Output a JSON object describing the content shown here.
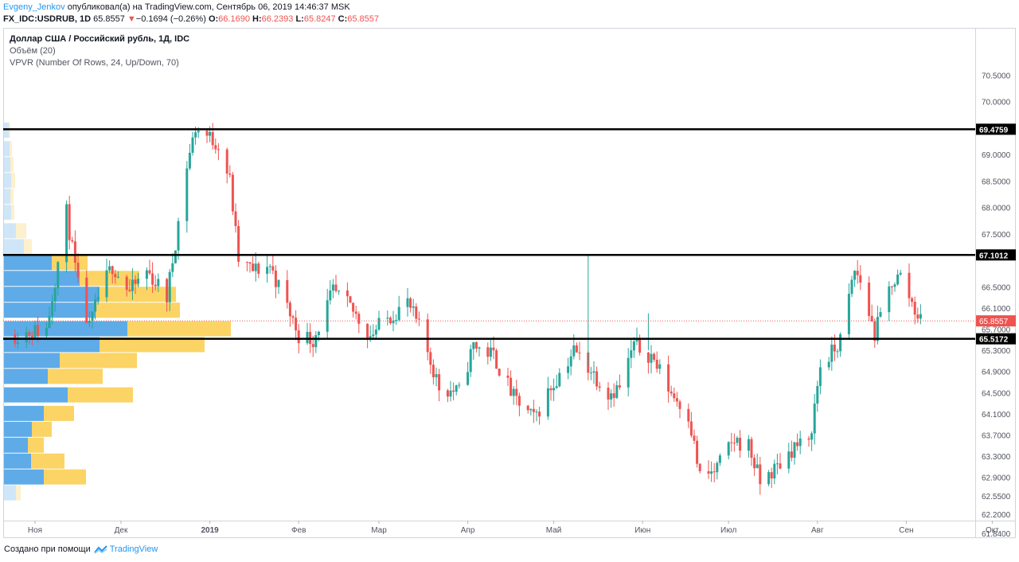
{
  "header": {
    "author": "Evgeny_Jenkov",
    "published": "опубликовал(а) на TradingView.com, Сентябрь 06, 2019 14:46:37 MSK",
    "symbol": "FX_IDC:USDRUB, 1D",
    "last": "65.8557",
    "change_arrow": "▼",
    "change": "−0.1694 (−0.26%)",
    "o_label": "O:",
    "o": "66.1690",
    "h_label": "H:",
    "h": "66.2393",
    "l_label": "L:",
    "l": "65.8247",
    "c_label": "C:",
    "c": "65.8557"
  },
  "legend": {
    "title": "Доллар США / Российский рубль, 1Д, IDC",
    "volume": "Объём (20)",
    "vpvr": "VPVR (Number Of Rows, 24, Up/Down, 70)"
  },
  "footer": {
    "created": "Создано при помощи",
    "brand": "TradingView",
    "brand_icon": "tradingview-logo-icon"
  },
  "colors": {
    "up": "#26a69a",
    "down": "#ef5350",
    "vp_up": "#5eabe8",
    "vp_down": "#fcd465",
    "vp_up_faint": "#cfe6f8",
    "vp_down_faint": "#fdf0cc",
    "level_line": "#000000",
    "price_line": "#ef5350"
  },
  "chart_data": {
    "type": "candlestick",
    "y_axis_ticks": [
      "70.5000",
      "70.0000",
      "69.0000",
      "68.5000",
      "68.0000",
      "67.5000",
      "66.5000",
      "66.1000",
      "65.7000",
      "65.3000",
      "64.9000",
      "64.5000",
      "64.1000",
      "63.7000",
      "63.3000",
      "62.9000",
      "62.5500",
      "62.2000",
      "61.8400"
    ],
    "x_axis_ticks": [
      "Ноя",
      "Дек",
      "2019",
      "Фев",
      "Мар",
      "Апр",
      "Май",
      "Июн",
      "Июл",
      "Авг",
      "Сен",
      "Окт"
    ],
    "levels": [
      {
        "value": 69.4759,
        "label": "69.4759"
      },
      {
        "value": 67.1012,
        "label": "67.1012"
      },
      {
        "value": 65.5172,
        "label": "65.5172"
      }
    ],
    "current_price": {
      "value": 65.8557,
      "label": "65.8557"
    },
    "volume_profile": [
      {
        "price": 69.45,
        "up": 6,
        "down": 2
      },
      {
        "price": 69.1,
        "up": 7,
        "down": 3
      },
      {
        "price": 68.8,
        "up": 8,
        "down": 4
      },
      {
        "price": 68.5,
        "up": 9,
        "down": 5
      },
      {
        "price": 68.2,
        "up": 8,
        "down": 4
      },
      {
        "price": 67.9,
        "up": 9,
        "down": 4
      },
      {
        "price": 67.55,
        "up": 15,
        "down": 13
      },
      {
        "price": 67.25,
        "up": 25,
        "down": 10
      },
      {
        "price": 66.95,
        "up": 60,
        "down": 45
      },
      {
        "price": 66.65,
        "up": 95,
        "down": 75
      },
      {
        "price": 66.35,
        "up": 120,
        "down": 96
      },
      {
        "price": 66.05,
        "up": 115,
        "down": 106
      },
      {
        "price": 65.7,
        "up": 155,
        "down": 130
      },
      {
        "price": 65.4,
        "up": 120,
        "down": 132
      },
      {
        "price": 65.1,
        "up": 70,
        "down": 97
      },
      {
        "price": 64.8,
        "up": 55,
        "down": 69
      },
      {
        "price": 64.45,
        "up": 80,
        "down": 82
      },
      {
        "price": 64.1,
        "up": 50,
        "down": 38
      },
      {
        "price": 63.8,
        "up": 35,
        "down": 25
      },
      {
        "price": 63.5,
        "up": 30,
        "down": 20
      },
      {
        "price": 63.2,
        "up": 34,
        "down": 42
      },
      {
        "price": 62.9,
        "up": 50,
        "down": 53
      },
      {
        "price": 62.6,
        "up": 15,
        "down": 6
      }
    ],
    "anchors": [
      {
        "d": "2018-10-25",
        "p": 65.6
      },
      {
        "d": "2018-11-05",
        "p": 65.7
      },
      {
        "d": "2018-11-12",
        "p": 67.9
      },
      {
        "d": "2018-11-16",
        "p": 66.5
      },
      {
        "d": "2018-11-20",
        "p": 65.7
      },
      {
        "d": "2018-11-23",
        "p": 66.3
      },
      {
        "d": "2018-11-28",
        "p": 66.9
      },
      {
        "d": "2018-12-04",
        "p": 66.4
      },
      {
        "d": "2018-12-10",
        "p": 66.8
      },
      {
        "d": "2018-12-17",
        "p": 66.3
      },
      {
        "d": "2018-12-19",
        "p": 67.0
      },
      {
        "d": "2018-12-24",
        "p": 68.8
      },
      {
        "d": "2018-12-27",
        "p": 69.5
      },
      {
        "d": "2019-01-04",
        "p": 69.2
      },
      {
        "d": "2019-01-08",
        "p": 68.5
      },
      {
        "d": "2019-01-11",
        "p": 67.0
      },
      {
        "d": "2019-01-16",
        "p": 66.8
      },
      {
        "d": "2019-01-22",
        "p": 66.9
      },
      {
        "d": "2019-02-01",
        "p": 65.6
      },
      {
        "d": "2019-02-06",
        "p": 65.5
      },
      {
        "d": "2019-02-13",
        "p": 66.4
      },
      {
        "d": "2019-02-19",
        "p": 66.1
      },
      {
        "d": "2019-02-26",
        "p": 65.6
      },
      {
        "d": "2019-03-06",
        "p": 66.0
      },
      {
        "d": "2019-03-11",
        "p": 66.2
      },
      {
        "d": "2019-03-16",
        "p": 65.6
      },
      {
        "d": "2019-03-22",
        "p": 64.6
      },
      {
        "d": "2019-03-29",
        "p": 64.5
      },
      {
        "d": "2019-04-03",
        "p": 65.4
      },
      {
        "d": "2019-04-10",
        "p": 65.2
      },
      {
        "d": "2019-04-17",
        "p": 64.4
      },
      {
        "d": "2019-04-24",
        "p": 64.0
      },
      {
        "d": "2019-04-29",
        "p": 64.5
      },
      {
        "d": "2019-05-08",
        "p": 65.3
      },
      {
        "d": "2019-05-13",
        "p": 65.0
      },
      {
        "d": "2019-05-20",
        "p": 64.5
      },
      {
        "d": "2019-05-24",
        "p": 64.6
      },
      {
        "d": "2019-05-29",
        "p": 65.4
      },
      {
        "d": "2019-06-04",
        "p": 65.2
      },
      {
        "d": "2019-06-11",
        "p": 64.5
      },
      {
        "d": "2019-06-17",
        "p": 64.1
      },
      {
        "d": "2019-06-21",
        "p": 62.9
      },
      {
        "d": "2019-06-26",
        "p": 63.0
      },
      {
        "d": "2019-07-03",
        "p": 63.6
      },
      {
        "d": "2019-07-08",
        "p": 63.5
      },
      {
        "d": "2019-07-12",
        "p": 62.8
      },
      {
        "d": "2019-07-18",
        "p": 63.1
      },
      {
        "d": "2019-07-24",
        "p": 63.5
      },
      {
        "d": "2019-07-29",
        "p": 63.5
      },
      {
        "d": "2019-08-02",
        "p": 65.0
      },
      {
        "d": "2019-08-07",
        "p": 65.3
      },
      {
        "d": "2019-08-09",
        "p": 65.5
      },
      {
        "d": "2019-08-14",
        "p": 66.8
      },
      {
        "d": "2019-08-16",
        "p": 66.6
      },
      {
        "d": "2019-08-21",
        "p": 65.6
      },
      {
        "d": "2019-08-27",
        "p": 66.6
      },
      {
        "d": "2019-08-30",
        "p": 66.7
      },
      {
        "d": "2019-09-03",
        "p": 66.2
      },
      {
        "d": "2019-09-06",
        "p": 65.86
      }
    ]
  }
}
